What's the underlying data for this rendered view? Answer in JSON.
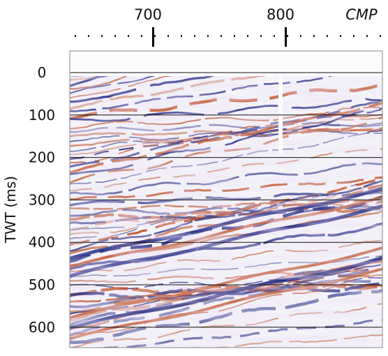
{
  "figure": {
    "top_axis": {
      "tick_labels": [
        "700",
        "800"
      ],
      "unit_label": "CMP"
    },
    "left_axis": {
      "label": "TWT (ms)",
      "tick_labels": [
        "0",
        "100",
        "200",
        "300",
        "400",
        "500",
        "600"
      ]
    }
  },
  "chart_data": {
    "type": "heatmap",
    "title": "",
    "xlabel": "CMP",
    "ylabel": "TWT (ms)",
    "x_ticks": [
      700,
      800
    ],
    "y_ticks": [
      0,
      100,
      200,
      300,
      400,
      500,
      600
    ],
    "ylim": [
      -45,
      650
    ],
    "y_direction": "down",
    "grid": "horizontal lines at each TWT tick",
    "colormap": {
      "negative": "#c0562b",
      "zero": "#ffffff",
      "positive": "#1a237e"
    }
  }
}
